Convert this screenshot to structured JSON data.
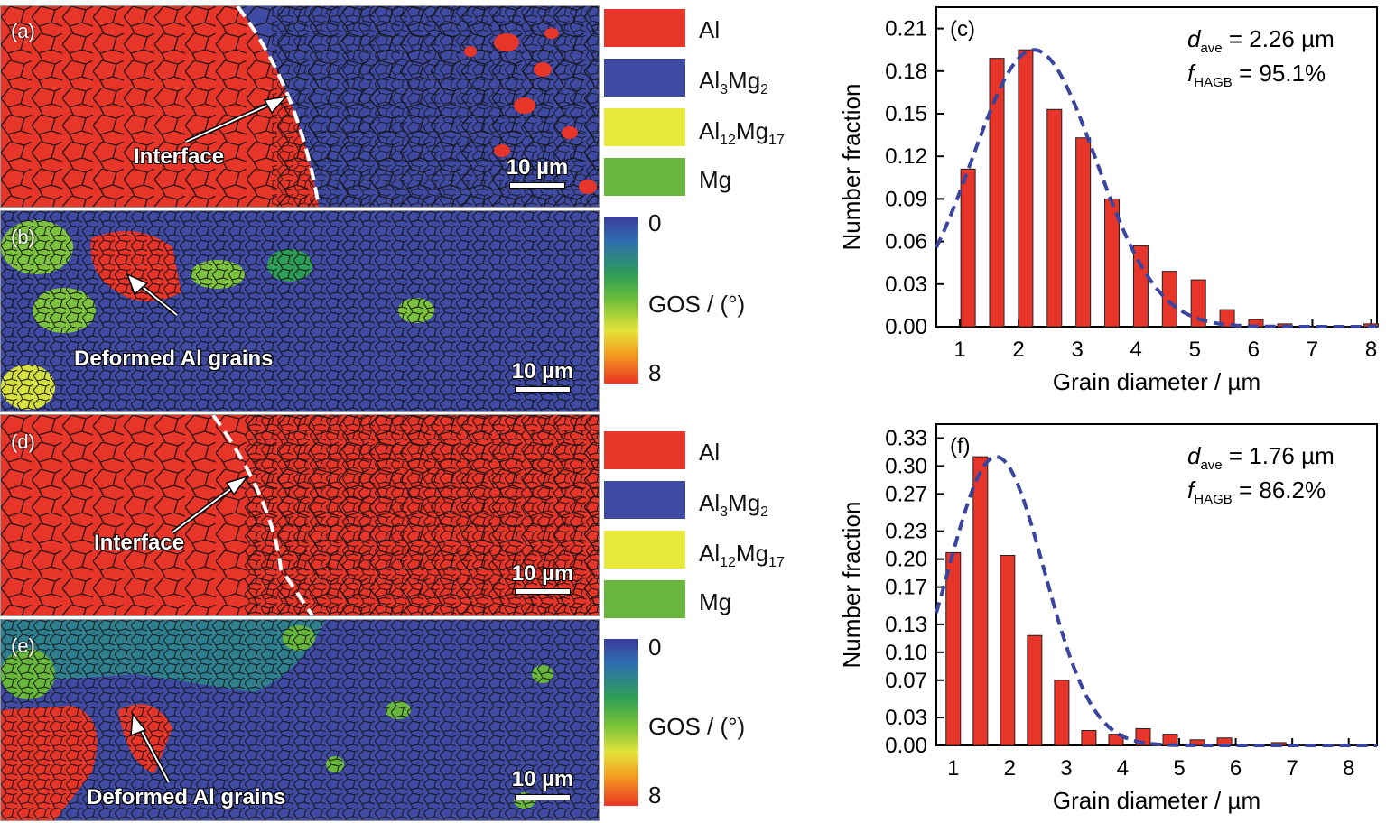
{
  "panels": {
    "a": {
      "label": "(a)",
      "annotation": "Interface",
      "scale": "10 µm"
    },
    "b": {
      "label": "(b)",
      "annotation": "Deformed Al grains",
      "scale": "10 µm"
    },
    "d": {
      "label": "(d)",
      "annotation": "Interface",
      "scale": "10 µm"
    },
    "e": {
      "label": "(e)",
      "annotation": "Deformed Al grains",
      "scale": "10 µm"
    }
  },
  "colors": {
    "al": "#e8352a",
    "al3mg2": "#3f4ba3",
    "al12mg17": "#e8e83a",
    "mg": "#68b63c",
    "curve": "#3a45a0",
    "bar": "#e8352a"
  },
  "phase_legend": {
    "al": "Al",
    "al3mg2": {
      "base1": "Al",
      "sub1": "3",
      "base2": "Mg",
      "sub2": "2"
    },
    "al12mg17": {
      "base1": "Al",
      "sub1": "12",
      "base2": "Mg",
      "sub2": "17"
    },
    "mg": "Mg"
  },
  "gos_legend": {
    "top": "0",
    "title": "GOS / (°)",
    "bottom": "8"
  },
  "chart_data": [
    {
      "panel": "(c)",
      "type": "bar",
      "xlabel": "Grain diameter / µm",
      "ylabel": "Number fraction",
      "x": [
        1.14,
        1.63,
        2.12,
        2.61,
        3.1,
        3.59,
        4.08,
        4.57,
        5.06,
        5.55,
        6.04,
        6.53,
        7.02,
        7.51,
        8.0
      ],
      "values": [
        0.111,
        0.189,
        0.195,
        0.153,
        0.133,
        0.09,
        0.057,
        0.039,
        0.033,
        0.012,
        0.005,
        0.002,
        0.0,
        0.0,
        0.002
      ],
      "xlim": [
        0.6,
        8.1
      ],
      "ylim": [
        0,
        0.225
      ],
      "xticks": [
        "1",
        "2",
        "3",
        "4",
        "5",
        "6",
        "7",
        "8"
      ],
      "yticks": [
        "0.00",
        "0.03",
        "0.06",
        "0.09",
        "0.12",
        "0.15",
        "0.18",
        "0.21"
      ],
      "fit_curve": {
        "type": "dashed",
        "mean": 2.26,
        "peak": 0.195
      },
      "stats": {
        "d_sym": "d",
        "d_sub": "ave",
        "d_val": "= 2.26 µm",
        "f_sym": "f",
        "f_sub": "HAGB",
        "f_val": "= 95.1%"
      }
    },
    {
      "panel": "(f)",
      "type": "bar",
      "xlabel": "Grain diameter / µm",
      "ylabel": "Number fraction",
      "x": [
        1.0,
        1.48,
        1.96,
        2.44,
        2.92,
        3.4,
        3.88,
        4.36,
        4.84,
        5.32,
        5.8,
        6.28,
        6.76,
        7.24,
        7.72,
        8.2
      ],
      "values": [
        0.207,
        0.31,
        0.204,
        0.118,
        0.07,
        0.016,
        0.012,
        0.018,
        0.012,
        0.006,
        0.008,
        0.001,
        0.003,
        0.001,
        0.001,
        0.001
      ],
      "xlim": [
        0.7,
        8.5
      ],
      "ylim": [
        0,
        0.345
      ],
      "xticks": [
        "1",
        "2",
        "3",
        "4",
        "5",
        "6",
        "7",
        "8"
      ],
      "yticks": [
        "0.00",
        "0.03",
        "0.07",
        "0.10",
        "0.13",
        "0.17",
        "0.20",
        "0.23",
        "0.27",
        "0.30",
        "0.33"
      ],
      "fit_curve": {
        "type": "dashed",
        "mean": 1.76,
        "peak": 0.31
      },
      "stats": {
        "d_sym": "d",
        "d_sub": "ave",
        "d_val": "= 1.76 µm",
        "f_sym": "f",
        "f_sub": "HAGB",
        "f_val": "= 86.2%"
      }
    }
  ]
}
